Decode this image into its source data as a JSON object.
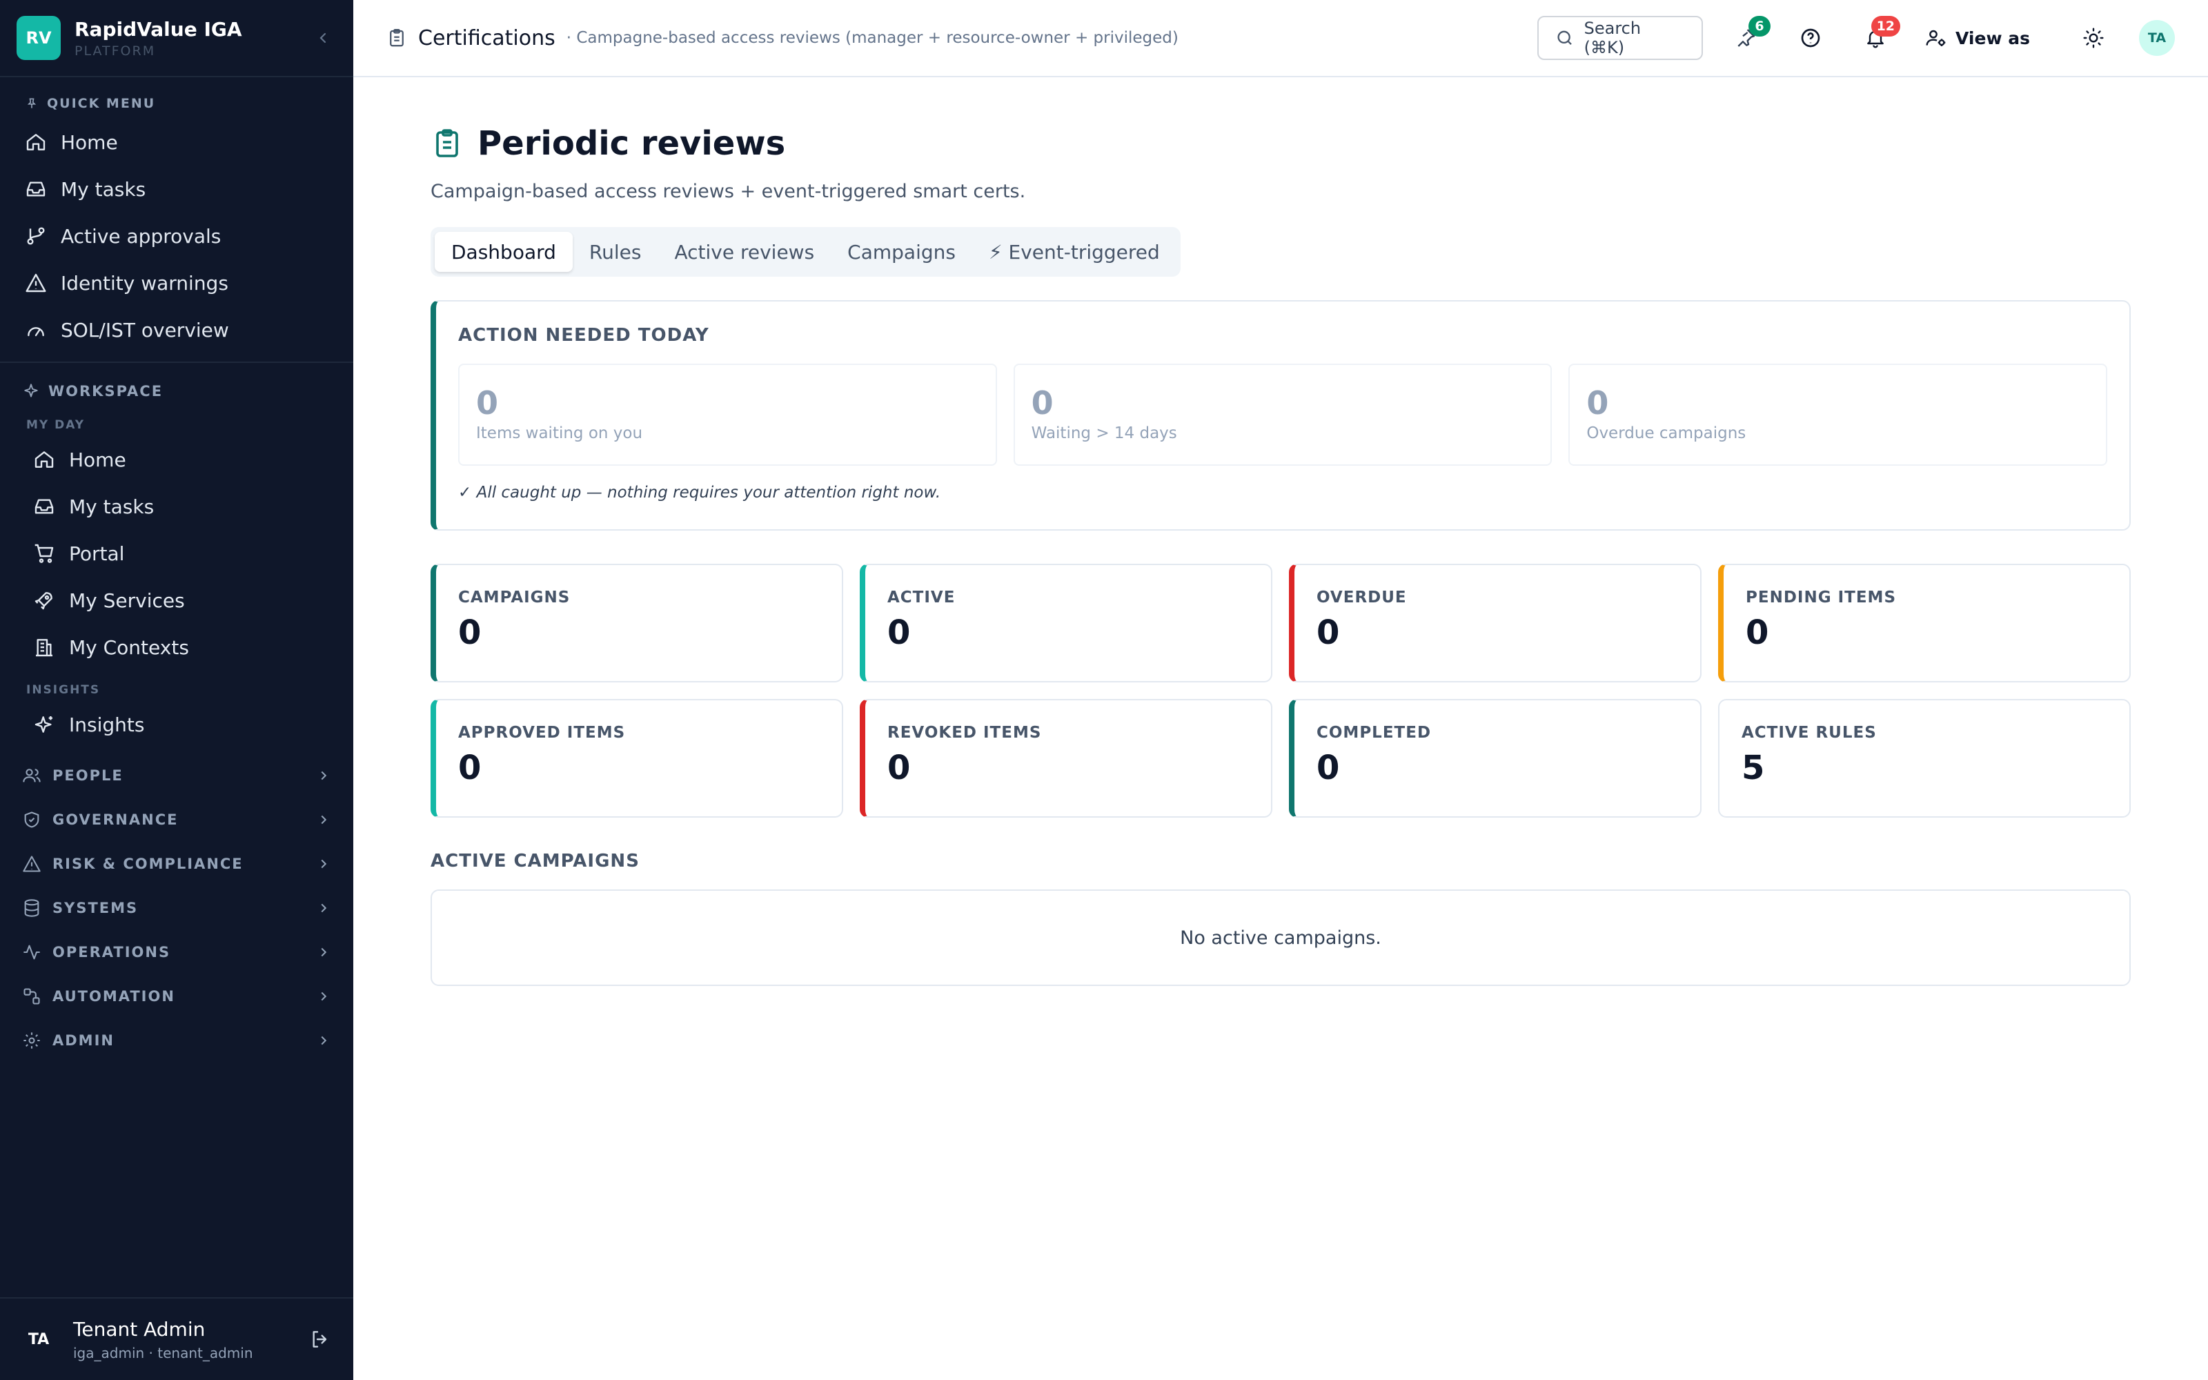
{
  "brand": {
    "logo": "RV",
    "name": "RapidValue IGA",
    "sub": "PLATFORM"
  },
  "quick_menu": {
    "header": "QUICK MENU",
    "items": [
      {
        "label": "Home",
        "icon": "home-icon"
      },
      {
        "label": "My tasks",
        "icon": "inbox-icon"
      },
      {
        "label": "Active approvals",
        "icon": "git-branch-icon"
      },
      {
        "label": "Identity warnings",
        "icon": "warning-icon"
      },
      {
        "label": "SOL/IST overview",
        "icon": "gauge-icon"
      }
    ]
  },
  "workspace": {
    "header": "WORKSPACE",
    "my_day": {
      "header": "MY DAY",
      "items": [
        {
          "label": "Home",
          "icon": "home-icon"
        },
        {
          "label": "My tasks",
          "icon": "inbox-icon"
        },
        {
          "label": "Portal",
          "icon": "cart-icon"
        },
        {
          "label": "My Services",
          "icon": "rocket-icon"
        },
        {
          "label": "My Contexts",
          "icon": "building-icon"
        }
      ]
    },
    "insights": {
      "header": "INSIGHTS",
      "items": [
        {
          "label": "Insights",
          "icon": "sparkles-icon"
        }
      ]
    }
  },
  "groups": [
    {
      "label": "PEOPLE",
      "icon": "users-icon"
    },
    {
      "label": "GOVERNANCE",
      "icon": "shield-icon"
    },
    {
      "label": "RISK & COMPLIANCE",
      "icon": "warning-icon"
    },
    {
      "label": "SYSTEMS",
      "icon": "database-icon"
    },
    {
      "label": "OPERATIONS",
      "icon": "activity-icon"
    },
    {
      "label": "AUTOMATION",
      "icon": "workflow-icon"
    },
    {
      "label": "ADMIN",
      "icon": "gear-icon"
    }
  ],
  "user": {
    "initials": "TA",
    "name": "Tenant Admin",
    "sub": "iga_admin · tenant_admin"
  },
  "topbar": {
    "title": "Certifications",
    "subtitle": "· Campagne-based access reviews (manager + resource-owner + privileged)",
    "search": "Search (⌘K)",
    "pin_badge": "6",
    "notif_badge": "12",
    "view_as": "View as",
    "avatar": "TA"
  },
  "page": {
    "title": "Periodic reviews",
    "description": "Campaign-based access reviews + event-triggered smart certs.",
    "tabs": [
      "Dashboard",
      "Rules",
      "Active reviews",
      "Campaigns",
      "⚡ Event-triggered"
    ]
  },
  "action_needed": {
    "title": "ACTION NEEDED TODAY",
    "items": [
      {
        "value": "0",
        "label": "Items waiting on you"
      },
      {
        "value": "0",
        "label": "Waiting > 14 days"
      },
      {
        "value": "0",
        "label": "Overdue campaigns"
      }
    ],
    "note": "✓ All caught up — nothing requires your attention right now."
  },
  "stats": [
    {
      "label": "CAMPAIGNS",
      "value": "0"
    },
    {
      "label": "ACTIVE",
      "value": "0"
    },
    {
      "label": "OVERDUE",
      "value": "0"
    },
    {
      "label": "PENDING ITEMS",
      "value": "0"
    },
    {
      "label": "APPROVED ITEMS",
      "value": "0"
    },
    {
      "label": "REVOKED ITEMS",
      "value": "0"
    },
    {
      "label": "COMPLETED",
      "value": "0"
    },
    {
      "label": "ACTIVE RULES",
      "value": "5"
    }
  ],
  "colors": {
    "accent": "#0f766e",
    "teal": "#14b8a6",
    "red": "#dc2626",
    "amber": "#f59e0b",
    "sidebar_bg": "#0f172a",
    "green_badge": "#059669",
    "red_badge": "#ef4444"
  },
  "active_campaigns": {
    "title": "ACTIVE CAMPAIGNS",
    "empty": "No active campaigns."
  }
}
